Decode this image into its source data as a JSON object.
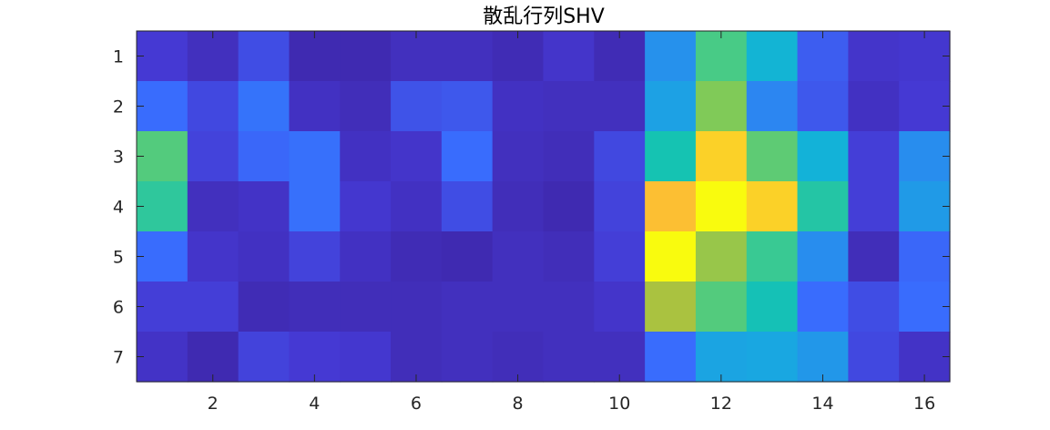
{
  "chart_data": {
    "type": "heatmap",
    "title": "散乱行列SHV",
    "xlabel": "",
    "ylabel": "",
    "x_range": [
      1,
      16
    ],
    "y_range": [
      1,
      7
    ],
    "y_reversed": true,
    "x_ticks": [
      2,
      4,
      6,
      8,
      10,
      12,
      14,
      16
    ],
    "y_ticks": [
      1,
      2,
      3,
      4,
      5,
      6,
      7
    ],
    "colormap": "parula",
    "color_limits": [
      0,
      1
    ],
    "grid": false,
    "values": [
      [
        0.1,
        0.05,
        0.14,
        0.02,
        0.02,
        0.05,
        0.05,
        0.03,
        0.08,
        0.03,
        0.3,
        0.6,
        0.42,
        0.17,
        0.08,
        0.09
      ],
      [
        0.2,
        0.13,
        0.22,
        0.06,
        0.04,
        0.15,
        0.16,
        0.06,
        0.05,
        0.05,
        0.35,
        0.7,
        0.27,
        0.16,
        0.06,
        0.1
      ],
      [
        0.62,
        0.12,
        0.19,
        0.21,
        0.06,
        0.08,
        0.2,
        0.05,
        0.04,
        0.13,
        0.5,
        0.93,
        0.64,
        0.41,
        0.11,
        0.29
      ],
      [
        0.55,
        0.05,
        0.07,
        0.21,
        0.09,
        0.06,
        0.14,
        0.04,
        0.02,
        0.12,
        0.9,
        1.0,
        0.93,
        0.53,
        0.11,
        0.33
      ],
      [
        0.2,
        0.08,
        0.06,
        0.12,
        0.06,
        0.03,
        0.02,
        0.05,
        0.04,
        0.11,
        1.0,
        0.74,
        0.57,
        0.29,
        0.04,
        0.19
      ],
      [
        0.11,
        0.11,
        0.03,
        0.04,
        0.04,
        0.04,
        0.05,
        0.05,
        0.05,
        0.08,
        0.77,
        0.62,
        0.49,
        0.2,
        0.14,
        0.2
      ],
      [
        0.07,
        0.02,
        0.12,
        0.1,
        0.09,
        0.04,
        0.05,
        0.04,
        0.05,
        0.05,
        0.2,
        0.36,
        0.37,
        0.32,
        0.13,
        0.07
      ]
    ]
  }
}
